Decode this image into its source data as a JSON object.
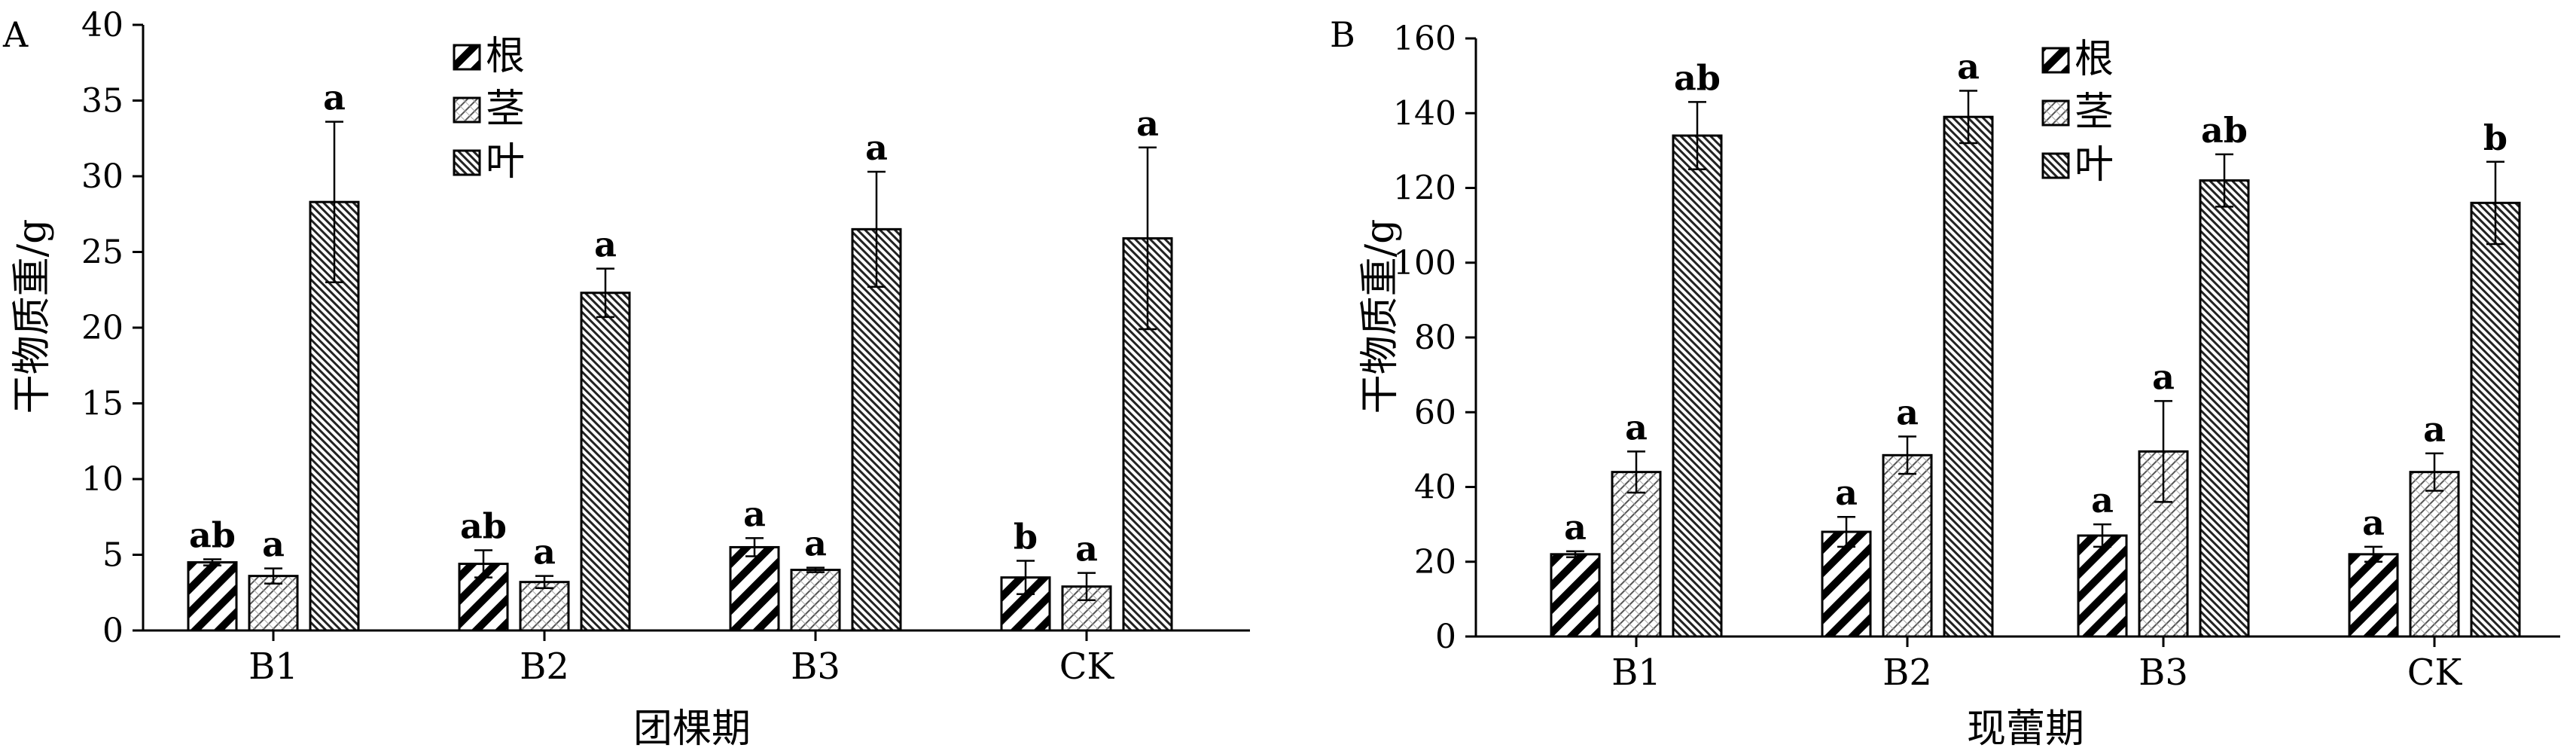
{
  "chart_data": [
    {
      "type": "bar",
      "panel_label": "A",
      "xlabel": "团棵期",
      "ylabel": "干物质重/g",
      "ylim": [
        0,
        40
      ],
      "yticks": [
        0,
        5,
        10,
        15,
        20,
        25,
        30,
        35,
        40
      ],
      "categories": [
        "B1",
        "B2",
        "B3",
        "CK"
      ],
      "legend_position": "top-center",
      "series": [
        {
          "name": "根",
          "pattern": "diag-heavy",
          "values": [
            4.5,
            4.4,
            5.5,
            3.5
          ],
          "errors": [
            0.2,
            0.9,
            0.6,
            1.1
          ],
          "labels": [
            "ab",
            "ab",
            "a",
            "b"
          ]
        },
        {
          "name": "茎",
          "pattern": "diag-light",
          "values": [
            3.6,
            3.2,
            4.0,
            2.9
          ],
          "errors": [
            0.5,
            0.4,
            0.15,
            0.9
          ],
          "labels": [
            "a",
            "a",
            "a",
            "a"
          ]
        },
        {
          "name": "叶",
          "pattern": "diag-dense",
          "values": [
            28.3,
            22.3,
            26.5,
            25.9
          ],
          "errors": [
            5.3,
            1.6,
            3.8,
            6.0
          ],
          "labels": [
            "a",
            "a",
            "a",
            "a"
          ]
        }
      ]
    },
    {
      "type": "bar",
      "panel_label": "B",
      "xlabel": "现蕾期",
      "ylabel": "干物质重/g",
      "ylim": [
        0,
        160
      ],
      "yticks": [
        0,
        20,
        40,
        60,
        80,
        100,
        120,
        140,
        160
      ],
      "categories": [
        "B1",
        "B2",
        "B3",
        "CK"
      ],
      "legend_position": "top-center",
      "series": [
        {
          "name": "根",
          "pattern": "diag-heavy",
          "values": [
            22,
            28,
            27,
            22
          ],
          "errors": [
            0.8,
            4,
            3,
            2
          ],
          "labels": [
            "a",
            "a",
            "a",
            "a"
          ]
        },
        {
          "name": "茎",
          "pattern": "diag-light",
          "values": [
            44,
            48.5,
            49.5,
            44
          ],
          "errors": [
            5.5,
            5,
            13.5,
            5
          ],
          "labels": [
            "a",
            "a",
            "a",
            "a"
          ]
        },
        {
          "name": "叶",
          "pattern": "diag-dense",
          "values": [
            134,
            139,
            122,
            116
          ],
          "errors": [
            9,
            7,
            7,
            11
          ],
          "labels": [
            "ab",
            "a",
            "ab",
            "b"
          ]
        }
      ]
    }
  ]
}
